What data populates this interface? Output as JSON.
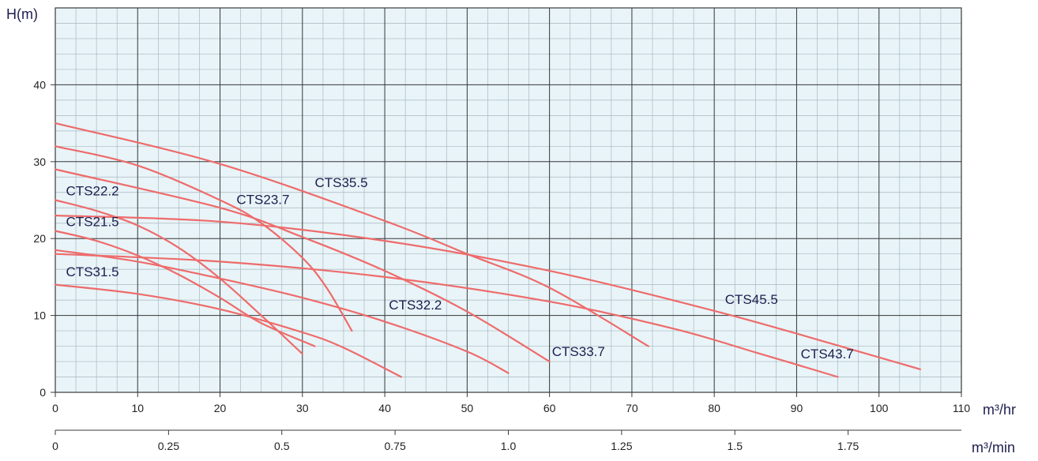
{
  "chart_data": {
    "type": "line",
    "title": "",
    "ylabel": "H(m)",
    "xlabel": "m³/hr",
    "xlabel2": "m³/min",
    "xlim": [
      0,
      110
    ],
    "ylim": [
      0,
      50
    ],
    "x_ticks": [
      0,
      10,
      20,
      30,
      40,
      50,
      60,
      70,
      80,
      90,
      100,
      110
    ],
    "y_ticks": [
      0,
      10,
      20,
      30,
      40
    ],
    "x2_ticks": [
      "0",
      "0.25",
      "0.5",
      "0.75",
      "1.0",
      "1.25",
      "1.5",
      "1.75"
    ],
    "x2_tick_values": [
      0,
      0.25,
      0.5,
      0.75,
      1.0,
      1.25,
      1.5,
      1.75
    ],
    "grid": true,
    "colors": {
      "curve": "#ee6b6b",
      "grid_major": "#3a3a3a",
      "grid_minor": "#a9b8bf",
      "plot_bg": "#e8f4f8",
      "text": "#1d1d4f"
    },
    "series": [
      {
        "name": "CTS22.2",
        "x": [
          0,
          5,
          10,
          15,
          20,
          25,
          30
        ],
        "y": [
          25,
          23.6,
          21.7,
          18.8,
          14.8,
          10,
          5
        ]
      },
      {
        "name": "CTS23.7",
        "x": [
          0,
          10,
          20,
          25,
          30,
          33,
          36
        ],
        "y": [
          32,
          29.5,
          25,
          22,
          17.5,
          13.5,
          8
        ]
      },
      {
        "name": "CTS35.5",
        "x": [
          0,
          20,
          40,
          50,
          60,
          72
        ],
        "y": [
          35,
          29.7,
          22.3,
          18,
          13.6,
          6
        ]
      },
      {
        "name": "CTS21.5",
        "x": [
          0,
          5,
          10,
          15,
          20,
          25,
          31.5
        ],
        "y": [
          21,
          19.7,
          17.8,
          15.3,
          12.3,
          9,
          6
        ]
      },
      {
        "name": "CTS31.5",
        "x": [
          0,
          10,
          20,
          30,
          35,
          42
        ],
        "y": [
          14,
          12.8,
          10.8,
          7.8,
          5.8,
          2
        ]
      },
      {
        "name": "CTS32.2",
        "x": [
          0,
          10,
          20,
          30,
          40,
          50,
          55
        ],
        "y": [
          18.5,
          17,
          14.8,
          12.3,
          9.2,
          5.3,
          2.5
        ]
      },
      {
        "name": "CTS33.7",
        "x": [
          0,
          20,
          30,
          40,
          50,
          60
        ],
        "y": [
          29,
          24,
          20.2,
          15.8,
          10.5,
          4
        ]
      },
      {
        "name": "CTS43.7",
        "x": [
          0,
          20,
          40,
          60,
          75,
          85,
          95
        ],
        "y": [
          18,
          17,
          15,
          11.8,
          8.3,
          5.2,
          2
        ]
      },
      {
        "name": "CTS45.5",
        "x": [
          0,
          20,
          40,
          60,
          80,
          95,
          105
        ],
        "y": [
          23,
          22.2,
          19.7,
          15.8,
          10.6,
          6.1,
          3
        ]
      }
    ],
    "labels": [
      {
        "text": "CTS22.2",
        "x": 1.3,
        "y": 25.6
      },
      {
        "text": "CTS23.7",
        "x": 22,
        "y": 24.5
      },
      {
        "text": "CTS35.5",
        "x": 31.5,
        "y": 26.7
      },
      {
        "text": "CTS21.5",
        "x": 1.3,
        "y": 21.6
      },
      {
        "text": "CTS31.5",
        "x": 1.3,
        "y": 15.1
      },
      {
        "text": "CTS32.2",
        "x": 40.5,
        "y": 10.8
      },
      {
        "text": "CTS33.7",
        "x": 60.3,
        "y": 4.7
      },
      {
        "text": "CTS43.7",
        "x": 90.5,
        "y": 4.4
      },
      {
        "text": "CTS45.5",
        "x": 81.3,
        "y": 11.5
      }
    ]
  }
}
